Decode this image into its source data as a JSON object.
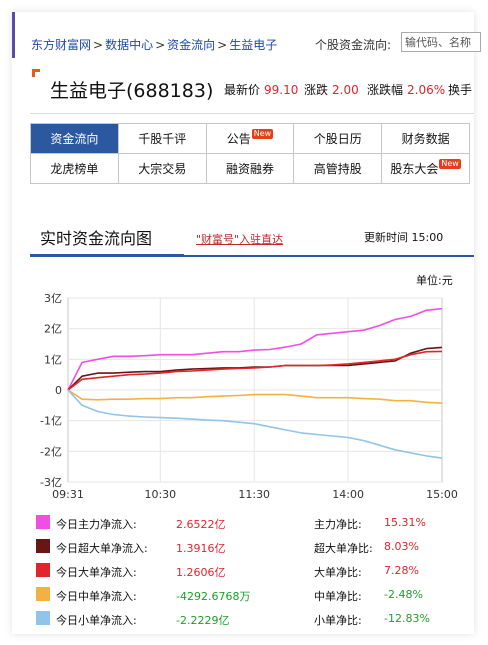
{
  "breadcrumb": {
    "items": [
      "东方财富网",
      "数据中心",
      "资金流向",
      "生益电子"
    ],
    "separator": ">"
  },
  "search": {
    "label": "个股资金流向:",
    "placeholder": "输代码、名称"
  },
  "stock": {
    "title": "生益电子(688183)",
    "price_label": "最新价",
    "price": "99.10",
    "change_label": "涨跌",
    "change": "2.00",
    "pct_label": "涨跌幅",
    "pct": "2.06%",
    "turnover_label": "换手"
  },
  "tabs": {
    "row1": [
      {
        "label": "资金流向",
        "active": true,
        "new": false
      },
      {
        "label": "千股千评",
        "active": false,
        "new": false
      },
      {
        "label": "公告",
        "active": false,
        "new": true
      },
      {
        "label": "个股日历",
        "active": false,
        "new": false
      },
      {
        "label": "财务数据",
        "active": false,
        "new": false
      }
    ],
    "row2": [
      {
        "label": "龙虎榜单",
        "active": false,
        "new": false
      },
      {
        "label": "大宗交易",
        "active": false,
        "new": false
      },
      {
        "label": "融资融券",
        "active": false,
        "new": false
      },
      {
        "label": "高管持股",
        "active": false,
        "new": false
      },
      {
        "label": "股东大会",
        "active": false,
        "new": true
      }
    ],
    "new_badge": "New"
  },
  "section": {
    "title": "实时资金流向图",
    "link": "\"财富号\"入驻直达",
    "update_time_label": "更新时间",
    "update_time": "15:00"
  },
  "unit_label": "单位:元",
  "colors": {
    "main": "#f04ee6",
    "super": "#6b1414",
    "large": "#e0262c",
    "medium": "#f5b042",
    "small": "#90c4e8",
    "active_tab": "#2c58a0",
    "up": "#e4232d",
    "down": "#1aa126"
  },
  "chart_data": {
    "type": "line",
    "x_ticks": [
      "09:31",
      "10:30",
      "11:30",
      "14:00",
      "15:00"
    ],
    "y_ticks": [
      "3亿",
      "2亿",
      "1亿",
      "0",
      "-1亿",
      "-2亿",
      "-3亿"
    ],
    "ylim": [
      -3,
      3
    ],
    "y_unit": "亿",
    "x": [
      "09:31",
      "09:40",
      "09:50",
      "10:00",
      "10:10",
      "10:20",
      "10:30",
      "10:40",
      "10:50",
      "11:00",
      "11:10",
      "11:20",
      "11:30",
      "13:10",
      "13:20",
      "13:30",
      "13:40",
      "13:50",
      "14:00",
      "14:10",
      "14:20",
      "14:30",
      "14:40",
      "14:50",
      "15:00"
    ],
    "series": [
      {
        "name": "今日主力净流入",
        "color": "#f04ee6",
        "values": [
          0.0,
          0.9,
          1.0,
          1.1,
          1.1,
          1.12,
          1.15,
          1.15,
          1.15,
          1.2,
          1.25,
          1.25,
          1.3,
          1.32,
          1.4,
          1.5,
          1.8,
          1.85,
          1.9,
          1.95,
          2.1,
          2.3,
          2.4,
          2.6,
          2.65
        ]
      },
      {
        "name": "今日超大单净流入",
        "color": "#6b1414",
        "values": [
          0.0,
          0.45,
          0.55,
          0.55,
          0.58,
          0.6,
          0.6,
          0.65,
          0.68,
          0.7,
          0.72,
          0.72,
          0.75,
          0.75,
          0.8,
          0.8,
          0.8,
          0.8,
          0.8,
          0.85,
          0.9,
          0.95,
          1.2,
          1.35,
          1.39
        ]
      },
      {
        "name": "今日大单净流入",
        "color": "#e0262c",
        "values": [
          0.0,
          0.35,
          0.4,
          0.45,
          0.5,
          0.52,
          0.55,
          0.6,
          0.62,
          0.65,
          0.68,
          0.7,
          0.72,
          0.75,
          0.8,
          0.8,
          0.8,
          0.82,
          0.85,
          0.9,
          0.95,
          1.0,
          1.15,
          1.25,
          1.26
        ]
      },
      {
        "name": "今日中单净流入",
        "color": "#f5b042",
        "values": [
          0.0,
          -0.3,
          -0.32,
          -0.3,
          -0.3,
          -0.28,
          -0.28,
          -0.25,
          -0.25,
          -0.22,
          -0.2,
          -0.18,
          -0.15,
          -0.15,
          -0.15,
          -0.2,
          -0.25,
          -0.25,
          -0.25,
          -0.28,
          -0.3,
          -0.35,
          -0.35,
          -0.4,
          -0.43
        ]
      },
      {
        "name": "今日小单净流入",
        "color": "#90c4e8",
        "values": [
          0.0,
          -0.5,
          -0.7,
          -0.8,
          -0.85,
          -0.88,
          -0.9,
          -0.92,
          -0.95,
          -0.98,
          -1.0,
          -1.05,
          -1.1,
          -1.2,
          -1.3,
          -1.4,
          -1.45,
          -1.5,
          -1.55,
          -1.65,
          -1.8,
          -1.95,
          -2.05,
          -2.15,
          -2.22
        ]
      }
    ]
  },
  "legend": [
    {
      "name": "今日主力净流入:",
      "value": "2.6522亿",
      "ratio_label": "主力净比:",
      "ratio": "15.31%",
      "trend": "up",
      "color": "#f04ee6"
    },
    {
      "name": "今日超大单净流入:",
      "value": "1.3916亿",
      "ratio_label": "超大单净比:",
      "ratio": "8.03%",
      "trend": "up",
      "color": "#6b1414"
    },
    {
      "name": "今日大单净流入:",
      "value": "1.2606亿",
      "ratio_label": "大单净比:",
      "ratio": "7.28%",
      "trend": "up",
      "color": "#e0262c"
    },
    {
      "name": "今日中单净流入:",
      "value": "-4292.6768万",
      "ratio_label": "中单净比:",
      "ratio": "-2.48%",
      "trend": "down",
      "color": "#f5b042"
    },
    {
      "name": "今日小单净流入:",
      "value": "-2.2229亿",
      "ratio_label": "小单净比:",
      "ratio": "-12.83%",
      "trend": "down",
      "color": "#90c4e8"
    }
  ]
}
